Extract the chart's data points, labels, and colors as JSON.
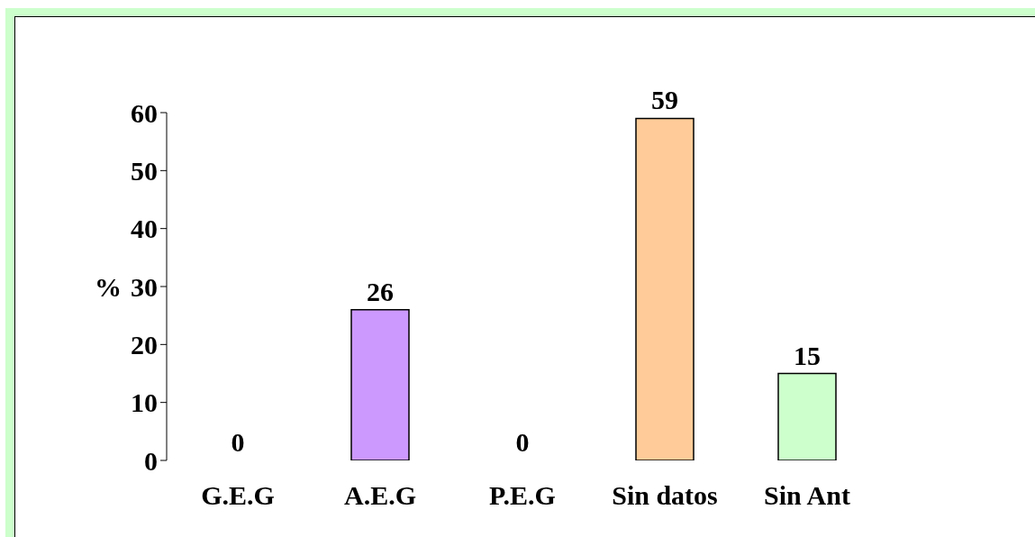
{
  "chart_data": {
    "type": "bar",
    "ylabel": "%",
    "categories": [
      "G.E.G",
      "A.E.G",
      "P.E.G",
      "Sin datos",
      "Sin Ant"
    ],
    "values": [
      0,
      26,
      0,
      59,
      15
    ],
    "colors": [
      "#33cccc",
      "#cc99ff",
      "#ff99cc",
      "#ffcc99",
      "#ccffcc"
    ],
    "ylim": [
      0,
      60
    ],
    "yticks": [
      0,
      10,
      20,
      30,
      40,
      50,
      60
    ],
    "data_labels": true
  }
}
